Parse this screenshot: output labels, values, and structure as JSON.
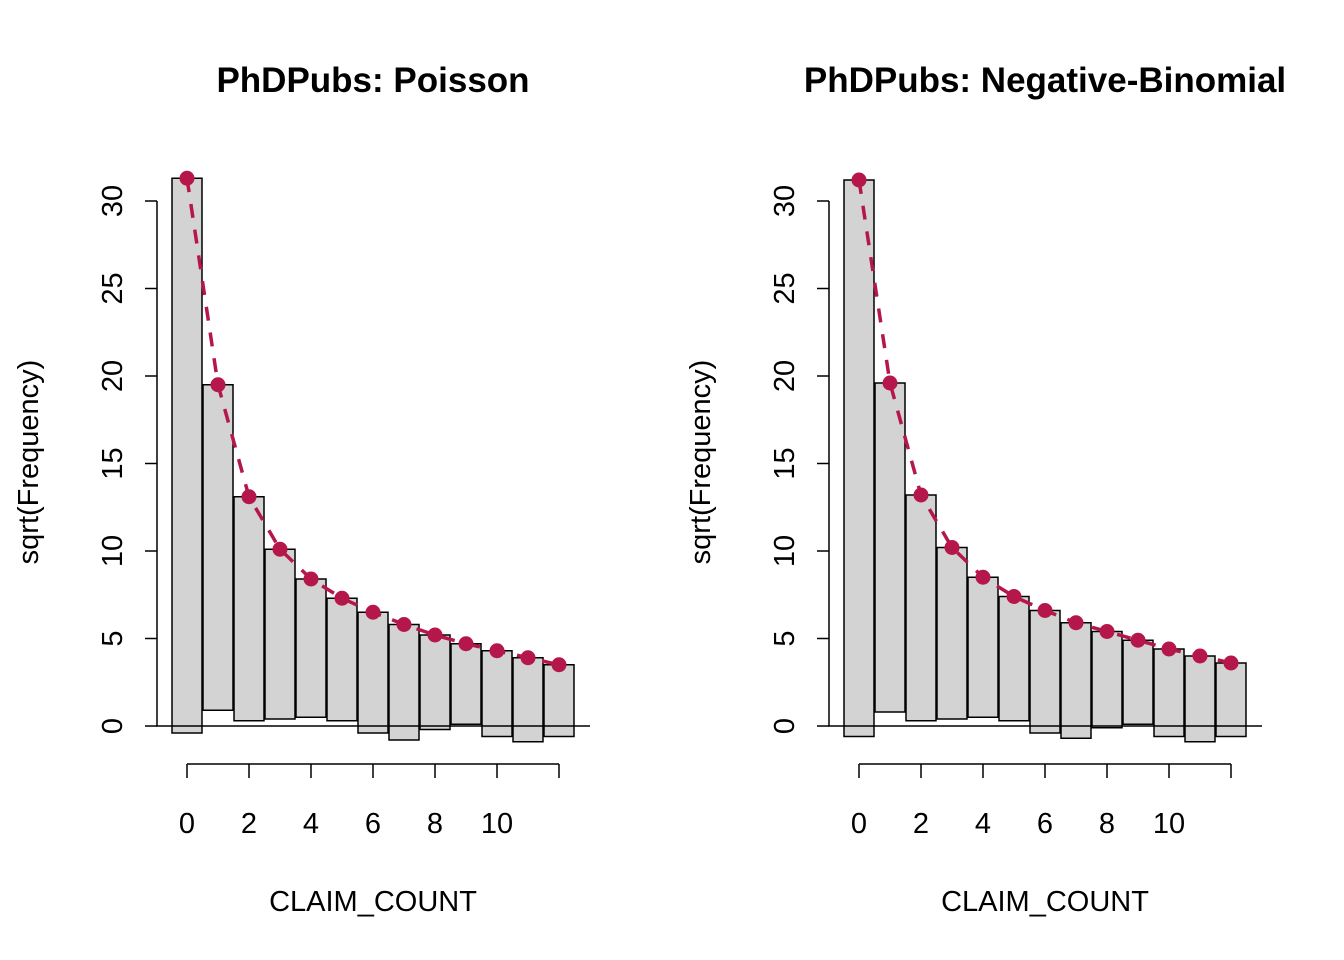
{
  "chart_data": [
    {
      "type": "bar",
      "title": "PhDPubs: Poisson",
      "xlabel": "CLAIM_COUNT",
      "ylabel": "sqrt(Frequency)",
      "categories": [
        0,
        1,
        2,
        3,
        4,
        5,
        6,
        7,
        8,
        9,
        10,
        11,
        12
      ],
      "x_ticks": [
        "0",
        "2",
        "4",
        "6",
        "8",
        "10"
      ],
      "y_ticks": [
        "0",
        "5",
        "10",
        "15",
        "20",
        "25",
        "30"
      ],
      "ylim": [
        -1,
        32
      ],
      "bars": [
        {
          "x": 0,
          "top": 31.3,
          "bottom": -0.4
        },
        {
          "x": 1,
          "top": 19.5,
          "bottom": 0.9
        },
        {
          "x": 2,
          "top": 13.1,
          "bottom": 0.3
        },
        {
          "x": 3,
          "top": 10.1,
          "bottom": 0.4
        },
        {
          "x": 4,
          "top": 8.4,
          "bottom": 0.5
        },
        {
          "x": 5,
          "top": 7.3,
          "bottom": 0.3
        },
        {
          "x": 6,
          "top": 6.5,
          "bottom": -0.4
        },
        {
          "x": 7,
          "top": 5.8,
          "bottom": -0.8
        },
        {
          "x": 8,
          "top": 5.2,
          "bottom": -0.2
        },
        {
          "x": 9,
          "top": 4.7,
          "bottom": 0.1
        },
        {
          "x": 10,
          "top": 4.3,
          "bottom": -0.6
        },
        {
          "x": 11,
          "top": 3.9,
          "bottom": -0.9
        },
        {
          "x": 12,
          "top": 3.5,
          "bottom": -0.6
        }
      ],
      "expected": [
        31.3,
        19.5,
        13.1,
        10.1,
        8.4,
        7.3,
        6.5,
        5.8,
        5.2,
        4.7,
        4.3,
        3.9,
        3.5
      ],
      "bar_color": "#d3d3d3",
      "line_color": "#b5174b"
    },
    {
      "type": "bar",
      "title": "PhDPubs: Negative-Binomial",
      "xlabel": "CLAIM_COUNT",
      "ylabel": "sqrt(Frequency)",
      "categories": [
        0,
        1,
        2,
        3,
        4,
        5,
        6,
        7,
        8,
        9,
        10,
        11,
        12
      ],
      "x_ticks": [
        "0",
        "2",
        "4",
        "6",
        "8",
        "10"
      ],
      "y_ticks": [
        "0",
        "5",
        "10",
        "15",
        "20",
        "25",
        "30"
      ],
      "ylim": [
        -1,
        32
      ],
      "bars": [
        {
          "x": 0,
          "top": 31.2,
          "bottom": -0.6
        },
        {
          "x": 1,
          "top": 19.6,
          "bottom": 0.8
        },
        {
          "x": 2,
          "top": 13.2,
          "bottom": 0.3
        },
        {
          "x": 3,
          "top": 10.2,
          "bottom": 0.4
        },
        {
          "x": 4,
          "top": 8.5,
          "bottom": 0.5
        },
        {
          "x": 5,
          "top": 7.4,
          "bottom": 0.3
        },
        {
          "x": 6,
          "top": 6.6,
          "bottom": -0.4
        },
        {
          "x": 7,
          "top": 5.9,
          "bottom": -0.7
        },
        {
          "x": 8,
          "top": 5.4,
          "bottom": -0.1
        },
        {
          "x": 9,
          "top": 4.9,
          "bottom": 0.1
        },
        {
          "x": 10,
          "top": 4.4,
          "bottom": -0.6
        },
        {
          "x": 11,
          "top": 4.0,
          "bottom": -0.9
        },
        {
          "x": 12,
          "top": 3.6,
          "bottom": -0.6
        }
      ],
      "expected": [
        31.2,
        19.6,
        13.2,
        10.2,
        8.5,
        7.4,
        6.6,
        5.9,
        5.4,
        4.9,
        4.4,
        4.0,
        3.6
      ],
      "bar_color": "#d3d3d3",
      "line_color": "#b5174b"
    }
  ]
}
